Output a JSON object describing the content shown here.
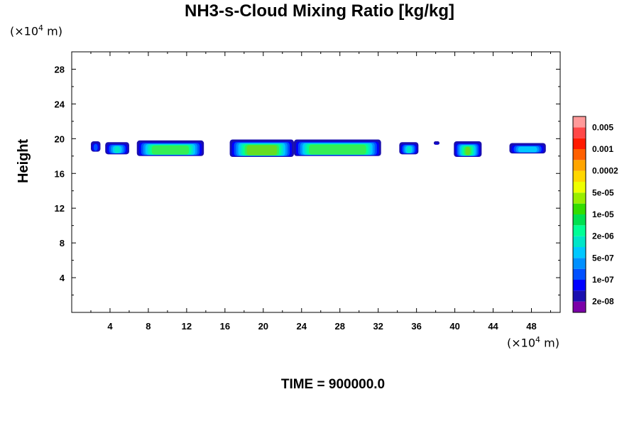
{
  "chart_data": {
    "type": "contour",
    "title": "NH3-s-Cloud Mixing Ratio [kg/kg]",
    "ylabel": "Height",
    "x_unit_prefix": "(×10",
    "x_unit_exp": "4",
    "x_unit_suffix": " m)",
    "y_unit_prefix": "(×10",
    "y_unit_exp": "4",
    "y_unit_suffix": " m)",
    "xlim": [
      0,
      51
    ],
    "ylim": [
      0,
      30
    ],
    "x_ticks": [
      4,
      8,
      12,
      16,
      20,
      24,
      28,
      32,
      36,
      40,
      44,
      48
    ],
    "y_ticks": [
      4,
      8,
      12,
      16,
      20,
      24,
      28
    ],
    "time_label": "TIME = 900000.0",
    "colorbar": {
      "colors": [
        "#7b00a8",
        "#1a0faf",
        "#0000ff",
        "#0050ff",
        "#0090ff",
        "#00c8ff",
        "#00e6c8",
        "#00ff96",
        "#00e050",
        "#33dd00",
        "#99ee00",
        "#eeff00",
        "#ffd700",
        "#ffa500",
        "#ff6000",
        "#ff1a00",
        "#ff4848",
        "#ff9a9a"
      ],
      "labels": [
        "2e-08",
        "1e-07",
        "5e-07",
        "2e-06",
        "1e-05",
        "5e-05",
        "0.0002",
        "0.001",
        "0.005"
      ]
    },
    "cloud_clusters": [
      {
        "x0": 2.0,
        "x1": 3.0,
        "y0": 18.5,
        "y1": 19.7,
        "peak": 3
      },
      {
        "x0": 3.5,
        "x1": 6.0,
        "y0": 18.2,
        "y1": 19.6,
        "peak": 6
      },
      {
        "x0": 6.8,
        "x1": 13.8,
        "y0": 18.0,
        "y1": 19.8,
        "peak": 8
      },
      {
        "x0": 16.5,
        "x1": 23.2,
        "y0": 17.9,
        "y1": 19.9,
        "peak": 9
      },
      {
        "x0": 23.2,
        "x1": 32.3,
        "y0": 18.0,
        "y1": 19.9,
        "peak": 8
      },
      {
        "x0": 34.2,
        "x1": 36.2,
        "y0": 18.2,
        "y1": 19.6,
        "peak": 6
      },
      {
        "x0": 37.8,
        "x1": 38.4,
        "y0": 19.3,
        "y1": 19.7,
        "peak": 2
      },
      {
        "x0": 39.9,
        "x1": 42.8,
        "y0": 17.9,
        "y1": 19.7,
        "peak": 9
      },
      {
        "x0": 45.7,
        "x1": 49.5,
        "y0": 18.3,
        "y1": 19.5,
        "peak": 5
      }
    ]
  }
}
